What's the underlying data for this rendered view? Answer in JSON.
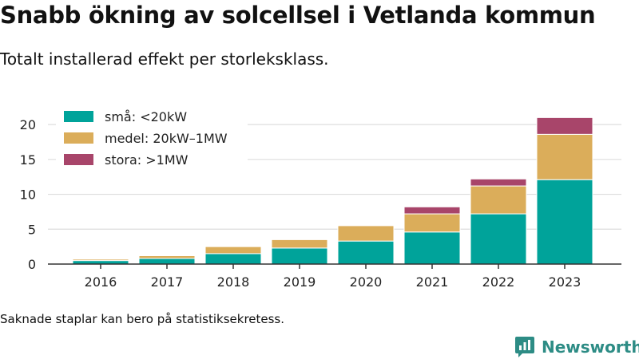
{
  "title": "Snabb ökning av solcellsel i Vetlanda kommun",
  "subtitle": "Totalt installerad effekt per storleksklass.",
  "footnote": "Saknade staplar kan bero på statistiksekretess.",
  "brand": "Newsworthy",
  "chart_data": {
    "type": "bar",
    "stacked": true,
    "categories": [
      "2016",
      "2017",
      "2018",
      "2019",
      "2020",
      "2021",
      "2022",
      "2023"
    ],
    "series": [
      {
        "name": "små: <20kW",
        "color": "#00a39a",
        "values": [
          0.5,
          0.8,
          1.5,
          2.3,
          3.3,
          4.6,
          7.2,
          12.1
        ]
      },
      {
        "name": "medel: 20kW–1MW",
        "color": "#dbad5a",
        "values": [
          0.2,
          0.4,
          1.0,
          1.2,
          2.2,
          2.6,
          4.0,
          6.5
        ]
      },
      {
        "name": "stora: >1MW",
        "color": "#a8456a",
        "values": [
          0,
          0,
          0,
          0,
          0,
          1.0,
          1.0,
          2.4
        ]
      }
    ],
    "yticks": [
      0,
      5,
      10,
      15,
      20
    ],
    "ylim": [
      0,
      21.5
    ],
    "grid": true,
    "legend_position": "top-left"
  }
}
